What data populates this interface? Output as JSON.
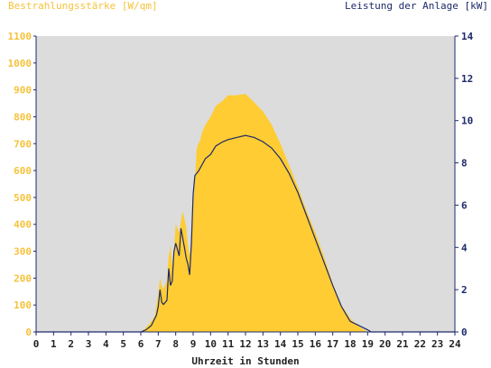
{
  "chart_data": {
    "type": "area",
    "title": "",
    "ylabel_left": "Bestrahlungsstärke [W/qm]",
    "ylabel_right": "Leistung der Anlage [kW]",
    "xlabel": "Uhrzeit in Stunden",
    "xlim": [
      0,
      24
    ],
    "ylim_left": [
      0,
      1100
    ],
    "ylim_right": [
      0,
      14
    ],
    "x_ticks": [
      0,
      1,
      2,
      3,
      4,
      5,
      6,
      7,
      8,
      9,
      10,
      11,
      12,
      13,
      14,
      15,
      16,
      17,
      18,
      19,
      20,
      21,
      22,
      23,
      24
    ],
    "y_ticks_left": [
      0,
      100,
      200,
      300,
      400,
      500,
      600,
      700,
      800,
      900,
      1000,
      1100
    ],
    "y_ticks_right": [
      0,
      2,
      4,
      6,
      8,
      10,
      12,
      14
    ],
    "colors": {
      "irradiance": "#ffcc33",
      "power": "#1c2a6a",
      "plot_bg": "#dcdcdc",
      "axis": "#1c2a6a"
    },
    "series": [
      {
        "name": "Bestrahlungsstärke [W/qm]",
        "axis": "left",
        "x": [
          0,
          6.0,
          6.2,
          6.5,
          6.8,
          7.0,
          7.1,
          7.2,
          7.3,
          7.5,
          7.6,
          7.7,
          7.8,
          7.9,
          8.0,
          8.2,
          8.4,
          8.5,
          8.6,
          8.7,
          8.8,
          8.9,
          9.0,
          9.1,
          9.2,
          9.3,
          9.4,
          9.5,
          9.7,
          10.0,
          10.3,
          10.7,
          11.0,
          11.5,
          12.0,
          12.4,
          12.7,
          13.0,
          13.5,
          14.0,
          14.5,
          15.0,
          15.5,
          16.0,
          16.5,
          17.0,
          17.5,
          18.0,
          18.5,
          19.0,
          19.3,
          24
        ],
        "y": [
          0,
          0,
          10,
          30,
          60,
          140,
          200,
          170,
          160,
          190,
          280,
          320,
          250,
          300,
          400,
          370,
          450,
          420,
          390,
          320,
          280,
          360,
          470,
          560,
          680,
          700,
          710,
          740,
          770,
          800,
          840,
          860,
          880,
          880,
          885,
          860,
          840,
          820,
          770,
          700,
          620,
          540,
          450,
          370,
          280,
          180,
          100,
          50,
          20,
          0,
          0,
          0
        ]
      },
      {
        "name": "Leistung der Anlage [kW]",
        "axis": "right",
        "x": [
          0,
          6.0,
          6.3,
          6.6,
          6.9,
          7.0,
          7.1,
          7.2,
          7.3,
          7.5,
          7.6,
          7.7,
          7.8,
          7.9,
          8.0,
          8.2,
          8.3,
          8.5,
          8.6,
          8.7,
          8.8,
          8.9,
          9.0,
          9.1,
          9.2,
          9.3,
          9.5,
          9.7,
          10.0,
          10.3,
          10.7,
          11.0,
          11.5,
          12.0,
          12.5,
          13.0,
          13.5,
          14.0,
          14.5,
          15.0,
          15.5,
          16.0,
          16.5,
          17.0,
          17.5,
          18.0,
          18.5,
          19.0,
          19.2,
          24
        ],
        "y": [
          0,
          0,
          0.1,
          0.3,
          0.8,
          1.2,
          2.0,
          1.4,
          1.3,
          1.5,
          3.0,
          2.2,
          2.4,
          3.8,
          4.2,
          3.6,
          4.9,
          4.0,
          3.5,
          3.2,
          2.7,
          4.2,
          6.5,
          7.4,
          7.5,
          7.6,
          7.9,
          8.2,
          8.4,
          8.8,
          9.0,
          9.1,
          9.2,
          9.3,
          9.2,
          9.0,
          8.7,
          8.2,
          7.5,
          6.6,
          5.5,
          4.4,
          3.3,
          2.2,
          1.2,
          0.5,
          0.3,
          0.1,
          0,
          0
        ]
      }
    ]
  }
}
